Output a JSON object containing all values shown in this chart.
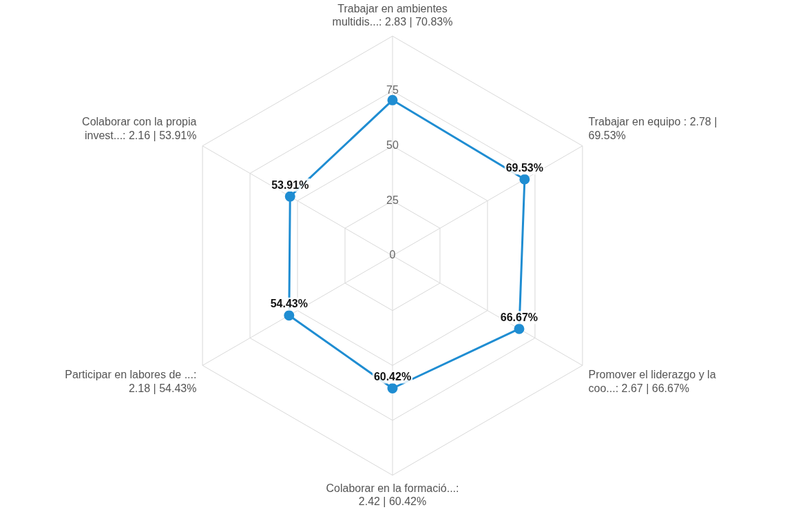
{
  "chart_data": {
    "type": "radar",
    "categories": [
      "Trabajar en ambientes multidis...: 2.83 | 70.83%",
      "Trabajar en equipo : 2.78 | 69.53%",
      "Promover el liderazgo y la coo...: 2.67 | 66.67%",
      "Colaborar en la formació...: 2.42 | 60.42%",
      "Participar en labores de ...: 2.18 | 54.43%",
      "Colaborar con la propia invest...: 2.16 | 53.91%"
    ],
    "series": [
      {
        "color": "#1f8dd2",
        "values": [
          70.83,
          69.53,
          66.67,
          60.42,
          54.43,
          53.91
        ],
        "value_labels": [
          null,
          "69.53%",
          "66.67%",
          "60.42%",
          "54.43%",
          "53.91%"
        ]
      }
    ],
    "ylim": [
      0,
      100
    ],
    "yticks": [
      0,
      25,
      50,
      75
    ],
    "grid": true,
    "legend": false,
    "marker": "circle",
    "line_style": "solid"
  }
}
